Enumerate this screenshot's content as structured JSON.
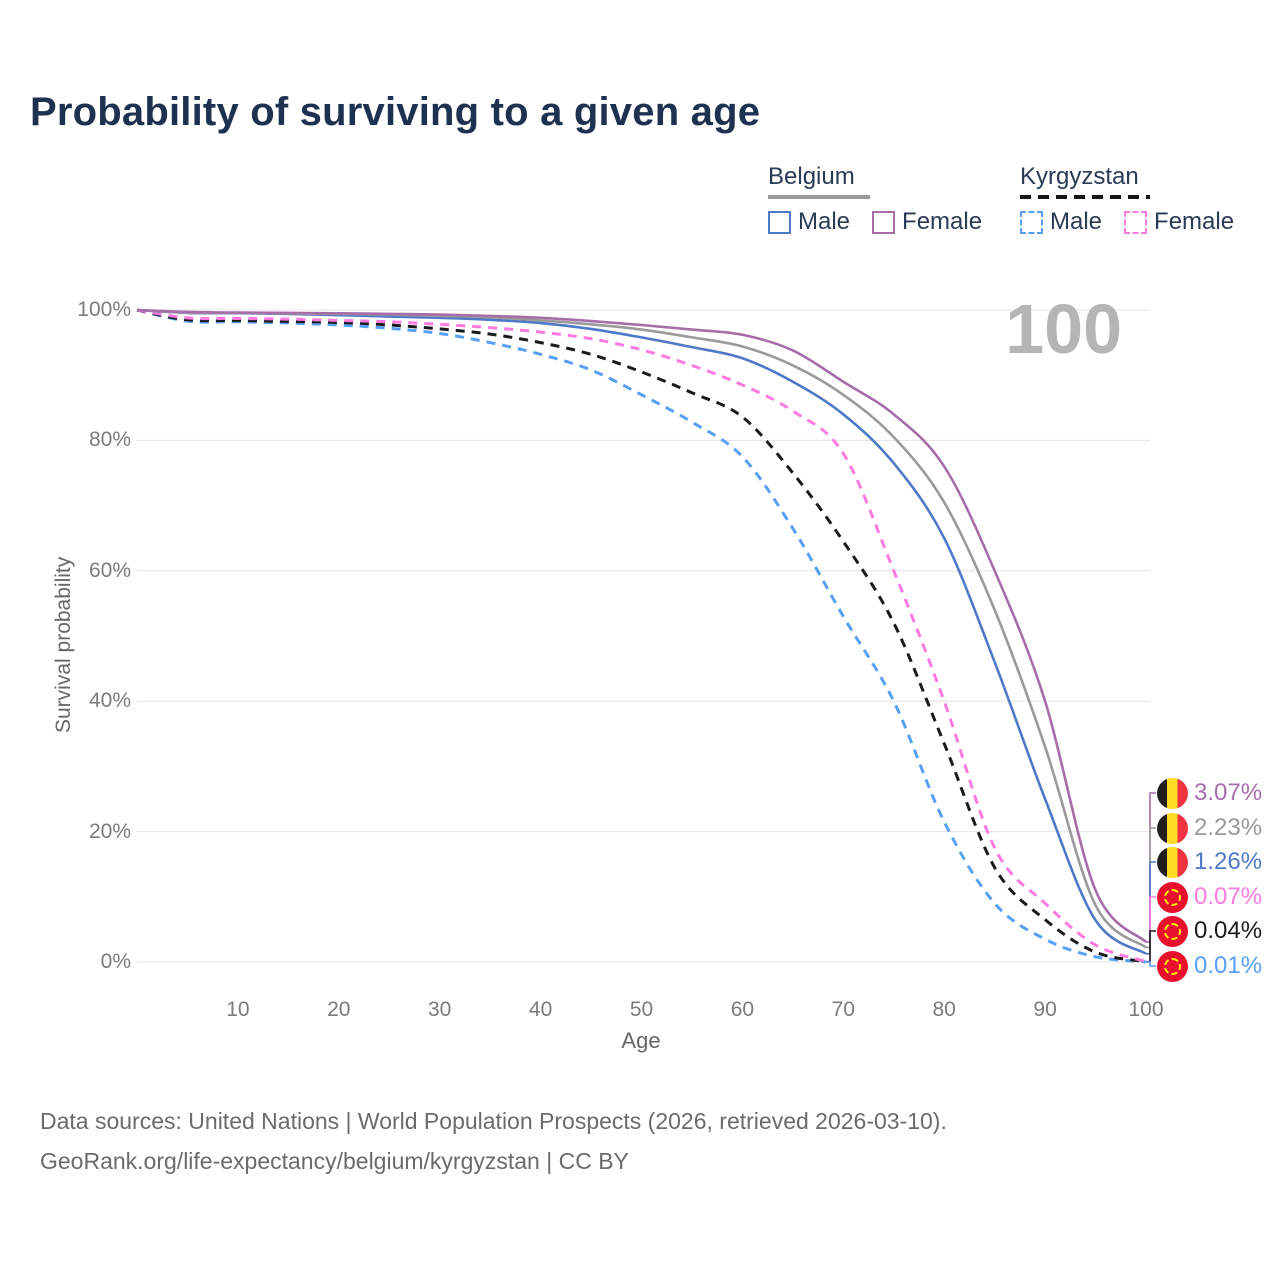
{
  "title": "Probability of surviving to a given age",
  "age_indicator": "100",
  "legend": {
    "groups": [
      {
        "name": "Belgium",
        "line_style": "solid",
        "underline_color": "#9a9a9a",
        "items": [
          {
            "label": "Male",
            "color": "#4e79c6"
          },
          {
            "label": "Female",
            "color": "#a76da9"
          }
        ]
      },
      {
        "name": "Kyrgyzstan",
        "line_style": "dashed",
        "underline_color": "#151515",
        "items": [
          {
            "label": "Male",
            "color": "#57a0f5"
          },
          {
            "label": "Female",
            "color": "#ff7ae0"
          }
        ]
      }
    ]
  },
  "chart_data": {
    "type": "line",
    "title": "Probability of surviving to a given age",
    "xlabel": "Age",
    "ylabel": "Survival probability",
    "xlim": [
      0,
      100
    ],
    "ylim": [
      0,
      100
    ],
    "grid": "horizontal-only",
    "x_ticks": [
      10,
      20,
      30,
      40,
      50,
      60,
      70,
      80,
      90,
      100
    ],
    "y_ticks": [
      {
        "value": 0,
        "label": "0%"
      },
      {
        "value": 20,
        "label": "20%"
      },
      {
        "value": 40,
        "label": "40%"
      },
      {
        "value": 60,
        "label": "60%"
      },
      {
        "value": 80,
        "label": "80%"
      },
      {
        "value": 100,
        "label": "100%"
      }
    ],
    "ages": [
      0,
      5,
      10,
      15,
      20,
      25,
      30,
      35,
      40,
      45,
      50,
      55,
      60,
      65,
      70,
      75,
      80,
      85,
      90,
      95,
      100
    ],
    "series": [
      {
        "name": "Belgium Female",
        "country": "Belgium",
        "sex": "Female",
        "color": "#a76da9",
        "dash": "solid",
        "end_label": "3.07%",
        "flag": "belgium",
        "values": [
          100,
          99.7,
          99.6,
          99.55,
          99.5,
          99.4,
          99.3,
          99.1,
          98.8,
          98.3,
          97.7,
          97.0,
          96.2,
          93.8,
          89.0,
          84.0,
          76.0,
          60.0,
          40.0,
          11.0,
          3.07
        ]
      },
      {
        "name": "Belgium (both sexes)",
        "country": "Belgium",
        "sex": "Both",
        "color": "#9a9a9a",
        "dash": "solid",
        "end_label": "2.23%",
        "flag": "belgium",
        "values": [
          100,
          99.6,
          99.55,
          99.45,
          99.4,
          99.3,
          99.1,
          98.9,
          98.4,
          97.8,
          97.0,
          95.8,
          94.4,
          91.5,
          87.0,
          80.5,
          70.5,
          54.0,
          33.0,
          8.7,
          2.23
        ]
      },
      {
        "name": "Belgium Male",
        "country": "Belgium",
        "sex": "Male",
        "color": "#4e79c6",
        "dash": "solid",
        "end_label": "1.26%",
        "flag": "belgium",
        "values": [
          100,
          99.55,
          99.5,
          99.4,
          99.2,
          99.0,
          98.8,
          98.5,
          98.0,
          97.1,
          95.8,
          94.3,
          92.6,
          89.0,
          84.0,
          76.5,
          65.0,
          46.0,
          25.0,
          6.4,
          1.26
        ]
      },
      {
        "name": "Kyrgyzstan Female",
        "country": "Kyrgyzstan",
        "sex": "Female",
        "color": "#ff7ae0",
        "dash": "dashed",
        "end_label": "0.07%",
        "flag": "kyrgyzstan",
        "values": [
          100,
          98.8,
          98.7,
          98.6,
          98.4,
          98.2,
          97.8,
          97.3,
          96.6,
          95.6,
          93.9,
          91.5,
          88.5,
          84.5,
          78.0,
          60.0,
          40.0,
          17.5,
          9.0,
          2.6,
          0.07
        ]
      },
      {
        "name": "Kyrgyzstan (both sexes)",
        "country": "Kyrgyzstan",
        "sex": "Both",
        "color": "#1a1a1a",
        "dash": "dashed",
        "end_label": "0.04%",
        "flag": "kyrgyzstan",
        "values": [
          100,
          98.5,
          98.4,
          98.25,
          98.1,
          97.7,
          97.1,
          96.3,
          95.0,
          93.2,
          90.5,
          87.3,
          83.6,
          75.0,
          64.5,
          52.0,
          33.5,
          14.5,
          6.5,
          1.5,
          0.04
        ]
      },
      {
        "name": "Kyrgyzstan Male",
        "country": "Kyrgyzstan",
        "sex": "Male",
        "color": "#57a0f5",
        "dash": "dashed",
        "end_label": "0.01%",
        "flag": "kyrgyzstan",
        "values": [
          100,
          98.3,
          98.2,
          98.0,
          97.7,
          97.2,
          96.4,
          95.0,
          93.2,
          90.8,
          87.0,
          82.8,
          77.5,
          66.5,
          53.0,
          40.0,
          21.5,
          9.0,
          3.5,
          0.8,
          0.01
        ]
      }
    ]
  },
  "footer": {
    "line1": "Data sources: United Nations | World Population Prospects (2026, retrieved 2026-03-10).",
    "line2": "GeoRank.org/life-expectancy/belgium/kyrgyzstan | CC BY"
  }
}
